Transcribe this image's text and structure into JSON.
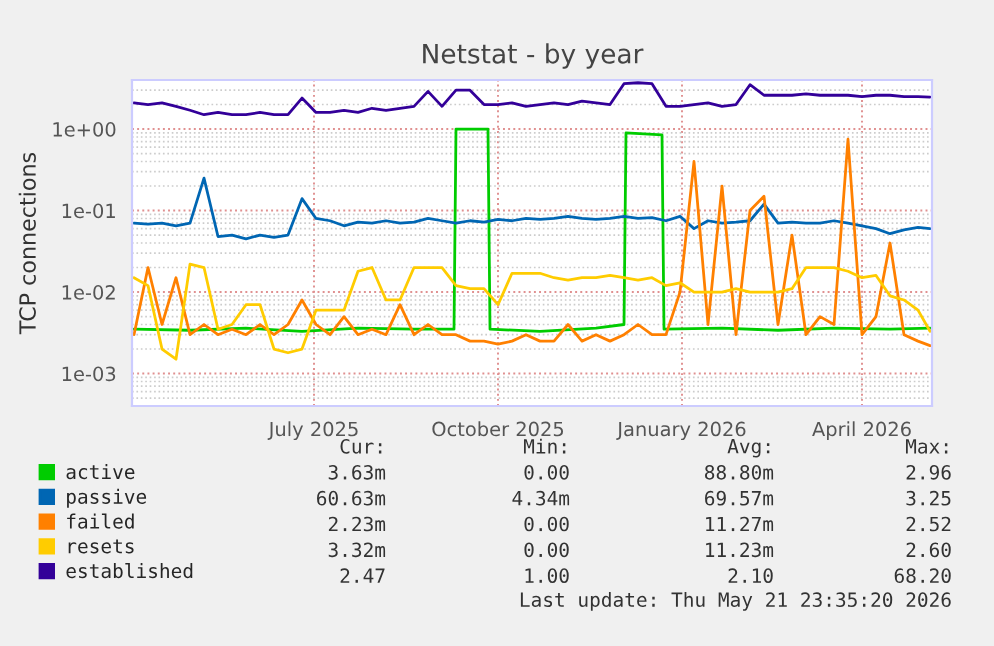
{
  "chart_data": {
    "type": "line",
    "title": "Netstat - by year",
    "ylabel": "TCP connections",
    "x": [
      "2025-04-17",
      "2025-04-24",
      "2025-05-01",
      "2025-05-08",
      "2025-05-15",
      "2025-05-22",
      "2025-05-29",
      "2025-06-05",
      "2025-06-12",
      "2025-06-19",
      "2025-06-26",
      "2025-07-03",
      "2025-07-10",
      "2025-07-17",
      "2025-07-24",
      "2025-07-31",
      "2025-08-07",
      "2025-08-14",
      "2025-08-21",
      "2025-08-28",
      "2025-09-04",
      "2025-09-11",
      "2025-09-18",
      "2025-09-25",
      "2025-10-02",
      "2025-10-09",
      "2025-10-16",
      "2025-10-23",
      "2025-10-30",
      "2025-11-06",
      "2025-11-13",
      "2025-11-20",
      "2025-11-27",
      "2025-12-04",
      "2025-12-11",
      "2025-12-18",
      "2025-12-25",
      "2026-01-01",
      "2026-01-08",
      "2026-01-15",
      "2026-01-22",
      "2026-01-29",
      "2026-02-05",
      "2026-02-12",
      "2026-02-19",
      "2026-02-26",
      "2026-03-05",
      "2026-03-12",
      "2026-03-19",
      "2026-03-26",
      "2026-04-02",
      "2026-04-09",
      "2026-04-16",
      "2026-04-23",
      "2026-04-30",
      "2026-05-07",
      "2026-05-14",
      "2026-05-20"
    ],
    "series": [
      {
        "name": "active",
        "color": "#00cc00",
        "x": [
          "2025-04-17",
          "2025-05-15",
          "2025-06-12",
          "2025-07-10",
          "2025-08-07",
          "2025-09-04",
          "2025-09-24",
          "2025-09-25",
          "2025-10-11",
          "2025-10-12",
          "2025-11-06",
          "2025-12-04",
          "2025-12-18",
          "2025-12-19",
          "2026-01-06",
          "2026-01-07",
          "2026-02-05",
          "2026-03-05",
          "2026-04-02",
          "2026-04-30",
          "2026-05-20"
        ],
        "values": [
          0.0035,
          0.0034,
          0.0036,
          0.0033,
          0.0036,
          0.0035,
          0.0035,
          1.0,
          1.0,
          0.0035,
          0.0033,
          0.0036,
          0.004,
          0.9,
          0.85,
          0.0035,
          0.0036,
          0.0034,
          0.0036,
          0.0035,
          0.0036
        ]
      },
      {
        "name": "passive",
        "color": "#0066b3",
        "values": [
          0.07,
          0.068,
          0.07,
          0.065,
          0.07,
          0.25,
          0.048,
          0.05,
          0.045,
          0.05,
          0.047,
          0.05,
          0.14,
          0.08,
          0.075,
          0.065,
          0.072,
          0.07,
          0.075,
          0.07,
          0.072,
          0.08,
          0.075,
          0.07,
          0.075,
          0.072,
          0.078,
          0.075,
          0.08,
          0.078,
          0.08,
          0.085,
          0.08,
          0.078,
          0.08,
          0.085,
          0.08,
          0.082,
          0.075,
          0.085,
          0.06,
          0.075,
          0.07,
          0.072,
          0.075,
          0.12,
          0.07,
          0.072,
          0.07,
          0.07,
          0.075,
          0.07,
          0.065,
          0.06,
          0.052,
          0.058,
          0.062,
          0.06
        ]
      },
      {
        "name": "failed",
        "color": "#ff8000",
        "values": [
          0.003,
          0.02,
          0.004,
          0.015,
          0.003,
          0.004,
          0.003,
          0.0035,
          0.003,
          0.004,
          0.003,
          0.004,
          0.008,
          0.004,
          0.003,
          0.005,
          0.003,
          0.0035,
          0.003,
          0.007,
          0.003,
          0.004,
          0.003,
          0.003,
          0.0025,
          0.0025,
          0.0023,
          0.0025,
          0.003,
          0.0025,
          0.0025,
          0.004,
          0.0025,
          0.003,
          0.0025,
          0.003,
          0.004,
          0.003,
          0.003,
          0.01,
          0.4,
          0.004,
          0.2,
          0.003,
          0.1,
          0.15,
          0.004,
          0.05,
          0.003,
          0.005,
          0.004,
          0.75,
          0.003,
          0.005,
          0.04,
          0.003,
          0.0025,
          0.0022
        ]
      },
      {
        "name": "resets",
        "color": "#ffcc00",
        "values": [
          0.015,
          0.012,
          0.002,
          0.0015,
          0.022,
          0.02,
          0.0035,
          0.004,
          0.007,
          0.007,
          0.002,
          0.0018,
          0.002,
          0.006,
          0.006,
          0.006,
          0.018,
          0.02,
          0.008,
          0.008,
          0.02,
          0.02,
          0.02,
          0.012,
          0.011,
          0.011,
          0.007,
          0.017,
          0.017,
          0.017,
          0.015,
          0.014,
          0.015,
          0.015,
          0.016,
          0.015,
          0.014,
          0.015,
          0.012,
          0.013,
          0.01,
          0.01,
          0.01,
          0.011,
          0.01,
          0.01,
          0.01,
          0.011,
          0.02,
          0.02,
          0.02,
          0.018,
          0.015,
          0.016,
          0.009,
          0.008,
          0.006,
          0.0033
        ]
      },
      {
        "name": "established",
        "color": "#330099",
        "values": [
          2.1,
          2.0,
          2.1,
          1.9,
          1.7,
          1.5,
          1.6,
          1.5,
          1.5,
          1.6,
          1.5,
          1.5,
          2.4,
          1.6,
          1.6,
          1.7,
          1.6,
          1.8,
          1.7,
          1.8,
          1.9,
          2.9,
          1.9,
          3.0,
          3.0,
          2.0,
          2.0,
          2.1,
          1.9,
          2.0,
          2.1,
          2.0,
          2.2,
          2.1,
          2.0,
          3.6,
          3.7,
          3.6,
          1.9,
          1.9,
          2.0,
          2.1,
          1.9,
          2.0,
          3.5,
          2.6,
          2.6,
          2.6,
          2.7,
          2.6,
          2.6,
          2.6,
          2.5,
          2.6,
          2.6,
          2.5,
          2.5,
          2.47
        ]
      }
    ],
    "log": true,
    "ylim": [
      0.0004,
      4
    ],
    "yticks": [
      {
        "value": 0.001,
        "label": "1e-03"
      },
      {
        "value": 0.01,
        "label": "1e-02"
      },
      {
        "value": 0.1,
        "label": "1e-01"
      },
      {
        "value": 1,
        "label": "1e+00"
      }
    ],
    "xlim": [
      "2025-04-16",
      "2026-05-21"
    ],
    "xticks": [
      {
        "value": "2025-07-16",
        "label": "July 2025"
      },
      {
        "value": "2025-10-16",
        "label": "October 2025"
      },
      {
        "value": "2026-01-16",
        "label": "January 2026"
      },
      {
        "value": "2026-04-16",
        "label": "April 2026"
      }
    ],
    "grid": true,
    "legend": "bottom",
    "marker": "none",
    "line_style": "solid",
    "annotations": [
      "Cur:",
      "Min:",
      "Avg:",
      "Max:",
      "3.63m",
      "0.00",
      "88.80m",
      "2.96",
      "60.63m",
      "4.34m",
      "69.57m",
      "3.25",
      "2.23m",
      "0.00",
      "11.27m",
      "2.52",
      "3.32m",
      "0.00",
      "11.23m",
      "2.60",
      "2.47",
      "1.00",
      "2.10",
      "68.20",
      "Last update: Thu May 21 23:35:20 2026"
    ]
  }
}
